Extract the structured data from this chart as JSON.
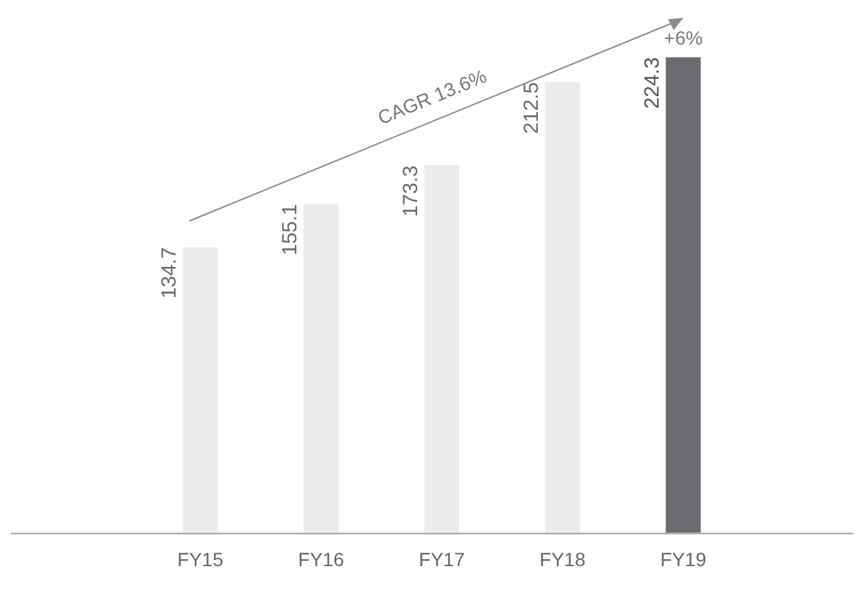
{
  "chart_data": {
    "type": "bar",
    "categories": [
      "FY15",
      "FY16",
      "FY17",
      "FY18",
      "FY19"
    ],
    "values": [
      134.7,
      155.1,
      173.3,
      212.5,
      224.3
    ],
    "colors": [
      "#ececec",
      "#ececec",
      "#ececec",
      "#ececec",
      "#6b6c6f"
    ],
    "data_labels": true,
    "legend": false,
    "annotations": [
      "CAGR 13.6%",
      {
        "text": "+6%",
        "x": "FY19",
        "y": 224.3
      }
    ]
  }
}
